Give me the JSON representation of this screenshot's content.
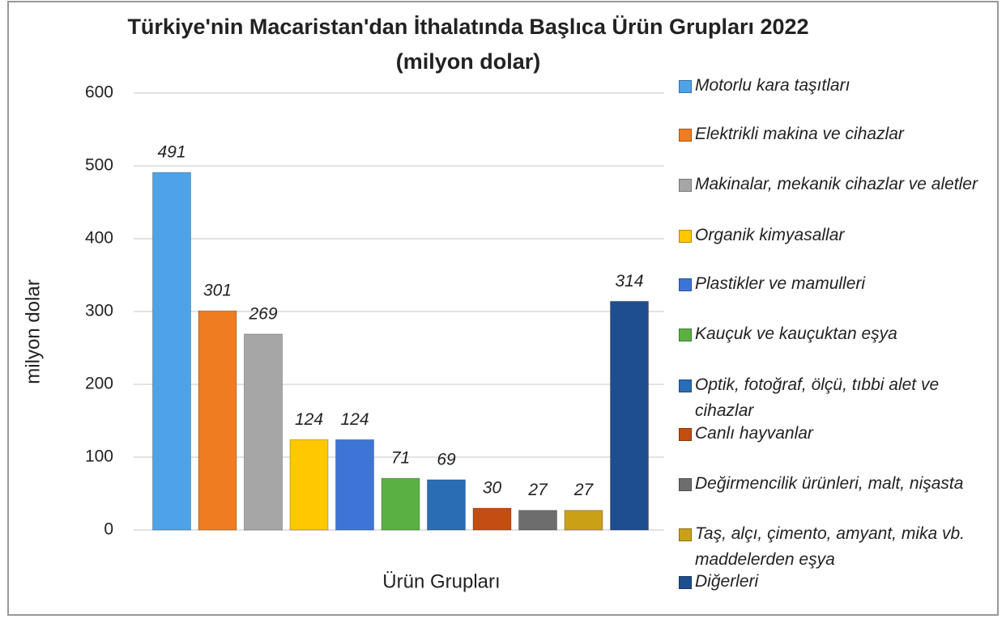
{
  "chart_data": {
    "type": "bar",
    "title": "Türkiye'nin Macaristan'dan İthalatında Başlıca Ürün Grupları 2022",
    "subtitle": "(milyon dolar)",
    "y_label": "milyon dolar",
    "x_label": "Ürün Grupları",
    "categories": [
      "Motorlu kara taşıtları",
      "Elektrikli makina ve cihazlar",
      "Makinalar, mekanik cihazlar ve aletler",
      "Organik kimyasallar",
      "Plastikler ve mamulleri",
      "Kauçuk ve kauçuktan eşya",
      "Optik, fotoğraf, ölçü, tıbbi alet ve cihazlar",
      "Canlı hayvanlar",
      "Değirmencilik ürünleri, malt, nişasta",
      "Taş, alçı, çimento, amyant, mika vb. maddelerden eşya",
      "Diğerleri"
    ],
    "values": [
      491,
      301,
      269,
      124,
      124,
      71,
      69,
      30,
      27,
      27,
      314
    ],
    "colors": [
      "#4ea3e8",
      "#f07c22",
      "#a6a6a6",
      "#ffc800",
      "#3d74d6",
      "#5bb043",
      "#2a6db5",
      "#c44d12",
      "#6d6d6d",
      "#c9a116",
      "#1f4e8f"
    ],
    "ylim": [
      0,
      600
    ],
    "yticks": [
      0,
      100,
      200,
      300,
      400,
      500,
      600
    ],
    "grid": true,
    "legend": "right"
  }
}
